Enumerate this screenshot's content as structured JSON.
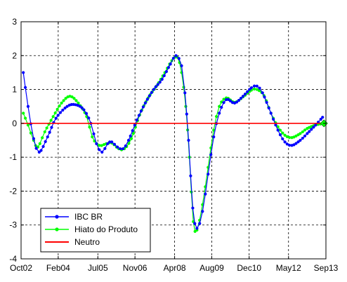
{
  "chart_data": {
    "type": "line",
    "xlim": [
      2002.75,
      2013.67
    ],
    "ylim": [
      -4,
      3
    ],
    "grid": true,
    "legend_position": "bottom-left",
    "x_ticks": [
      {
        "value": 2002.75,
        "label": "Oct02"
      },
      {
        "value": 2004.08,
        "label": "Feb04"
      },
      {
        "value": 2005.5,
        "label": "Jul05"
      },
      {
        "value": 2006.83,
        "label": "Nov06"
      },
      {
        "value": 2008.25,
        "label": "Apr08"
      },
      {
        "value": 2009.58,
        "label": "Aug09"
      },
      {
        "value": 2010.92,
        "label": "Dec10"
      },
      {
        "value": 2012.33,
        "label": "May12"
      },
      {
        "value": 2013.67,
        "label": "Sep13"
      }
    ],
    "y_ticks": [
      {
        "value": 3,
        "label": "3"
      },
      {
        "value": 2,
        "label": "2"
      },
      {
        "value": 1,
        "label": "1"
      },
      {
        "value": 0,
        "label": "0"
      },
      {
        "value": -1,
        "label": "-1"
      },
      {
        "value": -2,
        "label": "-2"
      },
      {
        "value": -3,
        "label": "-3"
      },
      {
        "value": -4,
        "label": "-4"
      }
    ],
    "series": [
      {
        "name": "IBC BR",
        "color": "#0000ff",
        "marker": "dot",
        "anchors": [
          [
            2002.83,
            1.5
          ],
          [
            2003.0,
            0.5
          ],
          [
            2003.2,
            -0.45
          ],
          [
            2003.4,
            -0.85
          ],
          [
            2003.7,
            -0.4
          ],
          [
            2004.0,
            0.15
          ],
          [
            2004.4,
            0.5
          ],
          [
            2004.7,
            0.55
          ],
          [
            2005.0,
            0.4
          ],
          [
            2005.25,
            0.0
          ],
          [
            2005.45,
            -0.6
          ],
          [
            2005.65,
            -0.85
          ],
          [
            2005.85,
            -0.6
          ],
          [
            2006.0,
            -0.55
          ],
          [
            2006.2,
            -0.7
          ],
          [
            2006.4,
            -0.75
          ],
          [
            2006.6,
            -0.5
          ],
          [
            2006.9,
            0.1
          ],
          [
            2007.2,
            0.6
          ],
          [
            2007.5,
            1.0
          ],
          [
            2007.8,
            1.3
          ],
          [
            2008.1,
            1.75
          ],
          [
            2008.3,
            2.0
          ],
          [
            2008.5,
            1.7
          ],
          [
            2008.62,
            0.9
          ],
          [
            2008.75,
            -0.5
          ],
          [
            2008.9,
            -2.5
          ],
          [
            2009.05,
            -3.1
          ],
          [
            2009.25,
            -2.6
          ],
          [
            2009.45,
            -1.5
          ],
          [
            2009.65,
            -0.4
          ],
          [
            2009.85,
            0.3
          ],
          [
            2010.1,
            0.7
          ],
          [
            2010.4,
            0.6
          ],
          [
            2010.7,
            0.8
          ],
          [
            2011.0,
            1.05
          ],
          [
            2011.2,
            1.1
          ],
          [
            2011.4,
            0.9
          ],
          [
            2011.7,
            0.3
          ],
          [
            2011.95,
            -0.2
          ],
          [
            2012.2,
            -0.55
          ],
          [
            2012.45,
            -0.65
          ],
          [
            2012.75,
            -0.5
          ],
          [
            2013.0,
            -0.3
          ],
          [
            2013.3,
            -0.05
          ],
          [
            2013.55,
            0.18
          ]
        ]
      },
      {
        "name": "Hiato do Produto",
        "color": "#00ff00",
        "marker": "dot",
        "anchors": [
          [
            2002.83,
            0.3
          ],
          [
            2003.0,
            -0.05
          ],
          [
            2003.2,
            -0.5
          ],
          [
            2003.35,
            -0.7
          ],
          [
            2003.6,
            -0.25
          ],
          [
            2003.9,
            0.2
          ],
          [
            2004.2,
            0.6
          ],
          [
            2004.5,
            0.8
          ],
          [
            2004.8,
            0.6
          ],
          [
            2005.1,
            0.2
          ],
          [
            2005.3,
            -0.4
          ],
          [
            2005.55,
            -0.65
          ],
          [
            2005.8,
            -0.6
          ],
          [
            2006.0,
            -0.58
          ],
          [
            2006.25,
            -0.75
          ],
          [
            2006.45,
            -0.75
          ],
          [
            2006.7,
            -0.45
          ],
          [
            2007.0,
            0.25
          ],
          [
            2007.3,
            0.75
          ],
          [
            2007.6,
            1.1
          ],
          [
            2007.9,
            1.5
          ],
          [
            2008.15,
            1.85
          ],
          [
            2008.35,
            1.95
          ],
          [
            2008.5,
            1.5
          ],
          [
            2008.65,
            0.5
          ],
          [
            2008.78,
            -1.0
          ],
          [
            2008.92,
            -2.9
          ],
          [
            2009.05,
            -3.15
          ],
          [
            2009.25,
            -2.4
          ],
          [
            2009.45,
            -1.3
          ],
          [
            2009.65,
            -0.2
          ],
          [
            2009.85,
            0.5
          ],
          [
            2010.1,
            0.75
          ],
          [
            2010.4,
            0.62
          ],
          [
            2010.7,
            0.78
          ],
          [
            2011.0,
            0.98
          ],
          [
            2011.2,
            1.0
          ],
          [
            2011.45,
            0.82
          ],
          [
            2011.7,
            0.3
          ],
          [
            2011.95,
            -0.1
          ],
          [
            2012.2,
            -0.35
          ],
          [
            2012.45,
            -0.42
          ],
          [
            2012.75,
            -0.3
          ],
          [
            2013.0,
            -0.15
          ],
          [
            2013.3,
            -0.05
          ],
          [
            2013.6,
            0.0
          ]
        ]
      },
      {
        "name": "Neutro",
        "color": "#ff0000",
        "marker": "none",
        "anchors": [
          [
            2002.75,
            0
          ],
          [
            2013.67,
            0
          ]
        ]
      }
    ]
  }
}
